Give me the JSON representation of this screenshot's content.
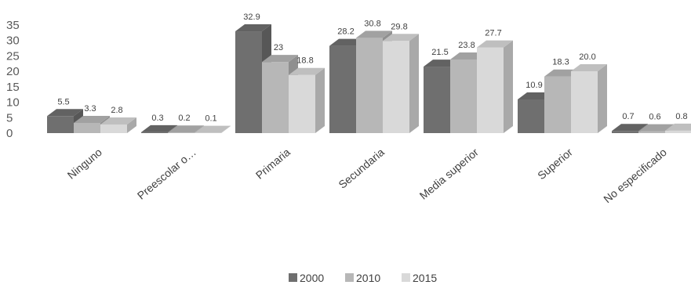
{
  "chart_data": {
    "type": "bar",
    "style": "3d-clustered-column",
    "categories": [
      "Ninguno",
      "Preescolar o…",
      "Primaria",
      "Secundaria",
      "Media superior",
      "Superior",
      "No especificado"
    ],
    "series": [
      {
        "name": "2000",
        "color": "#6f6f6f",
        "values": [
          5.5,
          0.3,
          32.9,
          28.2,
          21.5,
          10.9,
          0.7
        ],
        "labels": [
          "5.5",
          "0.3",
          "32.9",
          "28.2",
          "21.5",
          "10.9",
          "0.7"
        ]
      },
      {
        "name": "2010",
        "color": "#b7b7b7",
        "values": [
          3.3,
          0.2,
          23,
          30.8,
          23.8,
          18.3,
          0.6
        ],
        "labels": [
          "3.3",
          "0.2",
          "23",
          "30.8",
          "23.8",
          "18.3",
          "0.6"
        ]
      },
      {
        "name": "2015",
        "color": "#d9d9d9",
        "values": [
          2.8,
          0.1,
          18.8,
          29.8,
          27.7,
          20.0,
          0.8
        ],
        "labels": [
          "2.8",
          "0.1",
          "18.8",
          "29.8",
          "27.7",
          "20.0",
          "0.8"
        ]
      }
    ],
    "ylim": [
      0,
      35
    ],
    "yticks": [
      0,
      5,
      10,
      15,
      20,
      25,
      30,
      35
    ],
    "grid": false,
    "legend_position": "bottom",
    "title": "",
    "xlabel": "",
    "ylabel": ""
  }
}
